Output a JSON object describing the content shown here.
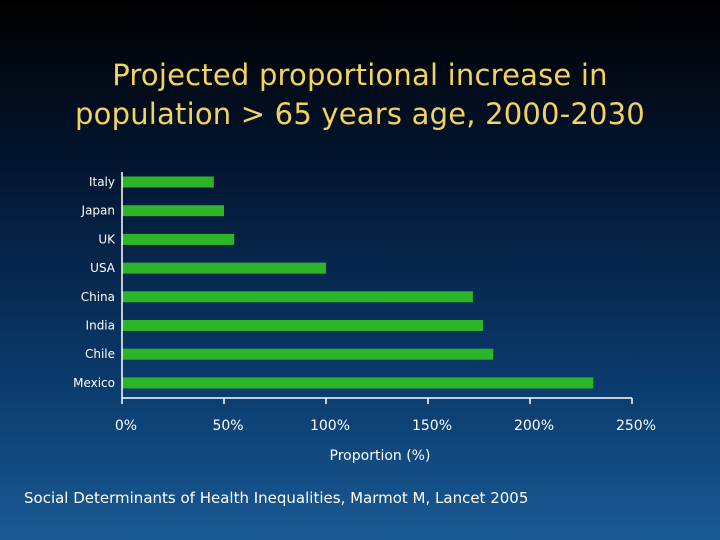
{
  "title_lines": [
    "Projected proportional increase in",
    "population > 65 years age, 2000-2030"
  ],
  "citation": "Social Determinants of Health Inequalities, Marmot M, Lancet 2005",
  "colors": {
    "bar": "#2db52a",
    "axis": "#ffffff",
    "title": "#f5d35b"
  },
  "chart_data": {
    "type": "bar",
    "orientation": "horizontal",
    "title": "Projected proportional increase in population > 65 years age, 2000-2030",
    "xlabel": "Proportion (%)",
    "ylabel": "",
    "categories": [
      "Italy",
      "Japan",
      "UK",
      "USA",
      "China",
      "India",
      "Chile",
      "Mexico"
    ],
    "values": [
      45,
      50,
      55,
      100,
      172,
      177,
      182,
      231
    ],
    "xlim": [
      0,
      250
    ],
    "xticks": [
      0,
      50,
      100,
      150,
      200,
      250
    ],
    "xtick_labels": [
      "0%",
      "50%",
      "100%",
      "150%",
      "200%",
      "250%"
    ],
    "grid": false,
    "legend": "none"
  }
}
